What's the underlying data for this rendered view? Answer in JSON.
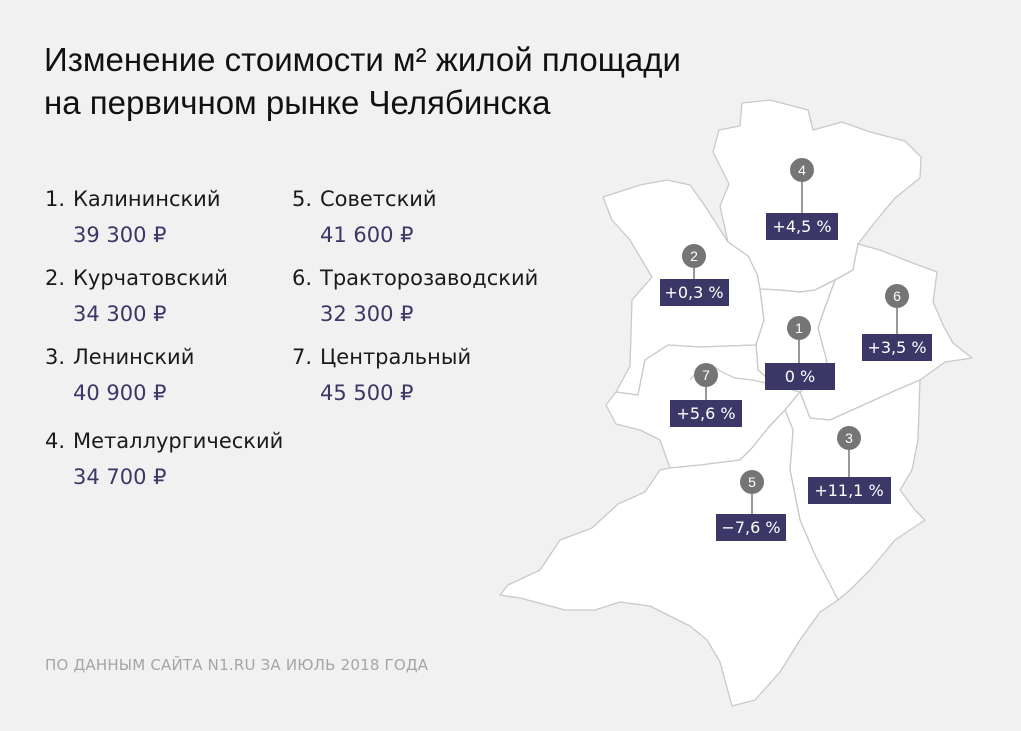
{
  "title": {
    "line1": "Изменение стоимости м² жилой площади",
    "line2": "на первичном рынке Челябинска"
  },
  "districts": [
    {
      "num": "1.",
      "name": "Калининский",
      "price": "39 300 ₽",
      "change": "0 %"
    },
    {
      "num": "2.",
      "name": "Курчатовский",
      "price": "34 300 ₽",
      "change": "+0,3 %"
    },
    {
      "num": "3.",
      "name": "Ленинский",
      "price": "40 900 ₽",
      "change": "+11,1 %"
    },
    {
      "num": "4.",
      "name": "Металлургический",
      "price": "34 700 ₽",
      "change": "+4,5 %"
    },
    {
      "num": "5.",
      "name": "Советский",
      "price": "41 600 ₽",
      "change": "−7,6 %"
    },
    {
      "num": "6.",
      "name": "Тракторозаводский",
      "price": "32 300 ₽",
      "change": "+3,5 %"
    },
    {
      "num": "7.",
      "name": "Центральный",
      "price": "45 500 ₽",
      "change": "+5,6 %"
    }
  ],
  "map_markers": [
    {
      "id": "1",
      "change": "0 %"
    },
    {
      "id": "2",
      "change": "+0,3 %"
    },
    {
      "id": "3",
      "change": "+11,1 %"
    },
    {
      "id": "4",
      "change": "+4,5 %"
    },
    {
      "id": "5",
      "change": "−7,6 %"
    },
    {
      "id": "6",
      "change": "+3,5 %"
    },
    {
      "id": "7",
      "change": "+5,6 %"
    }
  ],
  "source": "ПО ДАННЫМ САЙТА N1.RU ЗА ИЮЛЬ 2018 ГОДА",
  "colors": {
    "background": "#f1f1f1",
    "map_fill": "#ffffff",
    "map_border": "#c9c9c9",
    "label_bg": "#3b3766",
    "marker_circle": "#757575",
    "price_text": "#3b3766"
  }
}
